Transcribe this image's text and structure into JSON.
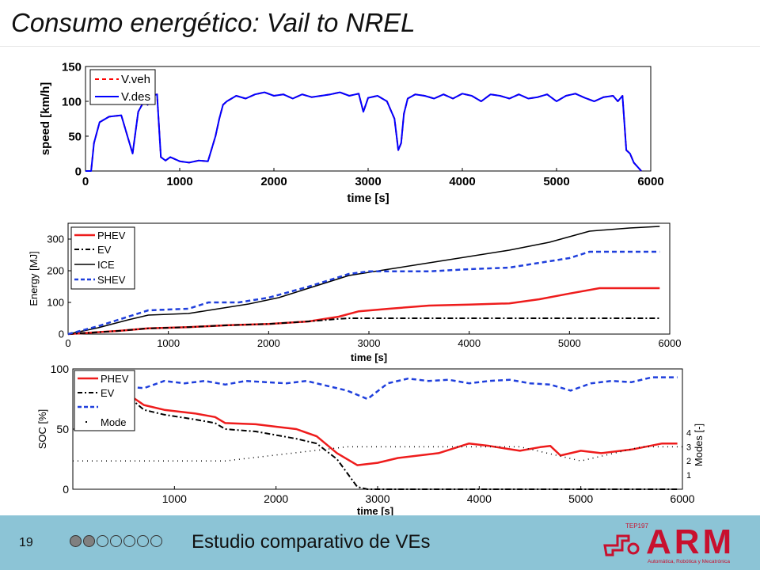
{
  "slide": {
    "title": "Consumo energético: Vail to NREL",
    "page_number": "19",
    "footer_text": "Estudio comparativo de VEs",
    "progress": {
      "total": 7,
      "filled": 2
    },
    "logo": {
      "main": "ARM",
      "small": "TEP197",
      "sub": "Automática, Robótica y Mecatrónica"
    },
    "colors": {
      "footer_bg": "#8cc4d6",
      "dot_fill": "#808080",
      "logo": "#c8102e"
    }
  },
  "chart_data": [
    {
      "type": "line",
      "xlabel": "time [s]",
      "ylabel": "speed [km/h]",
      "xlim": [
        0,
        6000
      ],
      "ylim": [
        0,
        150
      ],
      "xticks": [
        0,
        1000,
        2000,
        3000,
        4000,
        5000,
        6000
      ],
      "yticks": [
        0,
        50,
        100,
        150
      ],
      "legend": "top-left",
      "series": [
        {
          "name": "V.veh",
          "color": "#ff0000",
          "dash": "dashed",
          "x": [
            0,
            60,
            90,
            150,
            250,
            380,
            500,
            560,
            620,
            660,
            700,
            760,
            800,
            850,
            900,
            1000,
            1100,
            1200,
            1300,
            1380,
            1420,
            1460,
            1500,
            1600,
            1700,
            1800,
            1900,
            2000,
            2100,
            2200,
            2300,
            2400,
            2500,
            2600,
            2700,
            2800,
            2900,
            2950,
            3000,
            3100,
            3200,
            3280,
            3320,
            3350,
            3380,
            3420,
            3500,
            3600,
            3700,
            3800,
            3900,
            4000,
            4100,
            4200,
            4300,
            4400,
            4500,
            4600,
            4700,
            4800,
            4900,
            5000,
            5100,
            5200,
            5300,
            5400,
            5500,
            5600,
            5650,
            5700,
            5740,
            5780,
            5820,
            5860,
            5900
          ],
          "y": [
            0,
            0,
            40,
            70,
            78,
            80,
            25,
            85,
            100,
            95,
            108,
            110,
            20,
            15,
            20,
            14,
            12,
            15,
            14,
            50,
            75,
            95,
            100,
            108,
            104,
            110,
            113,
            108,
            110,
            104,
            110,
            106,
            108,
            110,
            113,
            108,
            111,
            85,
            105,
            108,
            100,
            75,
            30,
            40,
            82,
            104,
            110,
            108,
            104,
            110,
            104,
            111,
            108,
            100,
            110,
            108,
            104,
            110,
            104,
            106,
            110,
            100,
            108,
            111,
            105,
            100,
            106,
            108,
            100,
            108,
            30,
            25,
            12,
            6,
            0
          ]
        },
        {
          "name": "V.des",
          "color": "#0000ff",
          "dash": "solid",
          "x": [
            0,
            60,
            90,
            150,
            250,
            380,
            500,
            560,
            620,
            660,
            700,
            760,
            800,
            850,
            900,
            1000,
            1100,
            1200,
            1300,
            1380,
            1420,
            1460,
            1500,
            1600,
            1700,
            1800,
            1900,
            2000,
            2100,
            2200,
            2300,
            2400,
            2500,
            2600,
            2700,
            2800,
            2900,
            2950,
            3000,
            3100,
            3200,
            3280,
            3320,
            3350,
            3380,
            3420,
            3500,
            3600,
            3700,
            3800,
            3900,
            4000,
            4100,
            4200,
            4300,
            4400,
            4500,
            4600,
            4700,
            4800,
            4900,
            5000,
            5100,
            5200,
            5300,
            5400,
            5500,
            5600,
            5650,
            5700,
            5740,
            5780,
            5820,
            5860,
            5900
          ],
          "y": [
            0,
            0,
            40,
            70,
            78,
            80,
            25,
            85,
            100,
            95,
            108,
            110,
            20,
            15,
            20,
            14,
            12,
            15,
            14,
            50,
            75,
            95,
            100,
            108,
            104,
            110,
            113,
            108,
            110,
            104,
            110,
            106,
            108,
            110,
            113,
            108,
            111,
            85,
            105,
            108,
            100,
            75,
            30,
            40,
            82,
            104,
            110,
            108,
            104,
            110,
            104,
            111,
            108,
            100,
            110,
            108,
            104,
            110,
            104,
            106,
            110,
            100,
            108,
            111,
            105,
            100,
            106,
            108,
            100,
            108,
            30,
            25,
            12,
            6,
            0
          ]
        }
      ]
    },
    {
      "type": "line",
      "xlabel": "time [s]",
      "ylabel": "Energy [MJ]",
      "xlim": [
        0,
        6000
      ],
      "ylim": [
        0,
        350
      ],
      "xticks": [
        0,
        1000,
        2000,
        3000,
        4000,
        5000,
        6000
      ],
      "yticks": [
        0,
        100,
        200,
        300
      ],
      "legend": "top-left",
      "series": [
        {
          "name": "PHEV",
          "color": "#ee1c1c",
          "dash": "solid",
          "x": [
            0,
            500,
            800,
            1200,
            1600,
            2000,
            2400,
            2700,
            2900,
            3200,
            3600,
            4000,
            4400,
            4700,
            5000,
            5300,
            5900
          ],
          "y": [
            0,
            10,
            18,
            22,
            28,
            32,
            40,
            55,
            72,
            80,
            90,
            93,
            97,
            110,
            128,
            145,
            145
          ]
        },
        {
          "name": "EV",
          "color": "#000000",
          "dash": "dashdot",
          "x": [
            0,
            500,
            800,
            1200,
            1600,
            2000,
            2400,
            2700,
            2800,
            5900
          ],
          "y": [
            0,
            10,
            18,
            22,
            28,
            32,
            40,
            48,
            50,
            50
          ]
        },
        {
          "name": "ICE",
          "color": "#000000",
          "dash": "solid",
          "x": [
            0,
            300,
            600,
            800,
            1200,
            1500,
            1800,
            2100,
            2400,
            2800,
            3200,
            3600,
            4000,
            4400,
            4800,
            5200,
            5600,
            5900
          ],
          "y": [
            0,
            20,
            45,
            60,
            65,
            80,
            95,
            115,
            145,
            185,
            205,
            225,
            245,
            265,
            290,
            325,
            335,
            340
          ]
        },
        {
          "name": "SHEV",
          "color": "#1f3fdc",
          "dash": "dashed",
          "x": [
            0,
            300,
            600,
            800,
            1200,
            1400,
            1700,
            2000,
            2400,
            2800,
            3000,
            3600,
            4000,
            4400,
            4800,
            5000,
            5200,
            5900
          ],
          "y": [
            0,
            25,
            55,
            75,
            80,
            100,
            100,
            115,
            150,
            190,
            198,
            198,
            205,
            210,
            230,
            240,
            260,
            260
          ]
        }
      ]
    },
    {
      "type": "line",
      "xlabel": "time [s]",
      "ylabel": "SOC [%]",
      "y2label": "Modes [-]",
      "xlim": [
        0,
        6000
      ],
      "ylim": [
        0,
        100
      ],
      "xticks": [
        1000,
        2000,
        3000,
        4000,
        5000,
        6000
      ],
      "yticks": [
        0,
        50,
        100
      ],
      "y2ticks": [
        1,
        2,
        3,
        4
      ],
      "legend": "top-left",
      "series": [
        {
          "name": "PHEV",
          "color": "#ee1c1c",
          "dash": "solid",
          "x": [
            560,
            700,
            900,
            1200,
            1400,
            1500,
            1800,
            2000,
            2200,
            2400,
            2600,
            2800,
            3000,
            3200,
            3600,
            3900,
            4100,
            4400,
            4600,
            4700,
            4800,
            5000,
            5200,
            5500,
            5800,
            5950
          ],
          "y": [
            78,
            70,
            66,
            63,
            60,
            55,
            54,
            52,
            50,
            44,
            30,
            20,
            22,
            26,
            30,
            38,
            36,
            32,
            35,
            36,
            28,
            32,
            30,
            33,
            38,
            38
          ]
        },
        {
          "name": "EV",
          "color": "#000000",
          "dash": "dashdot",
          "x": [
            560,
            700,
            900,
            1200,
            1400,
            1500,
            1800,
            2000,
            2200,
            2400,
            2600,
            2800,
            2900,
            5950
          ],
          "y": [
            76,
            66,
            62,
            58,
            55,
            50,
            48,
            45,
            42,
            38,
            25,
            2,
            0,
            0
          ]
        },
        {
          "name": "",
          "color": "#1f3fdc",
          "dash": "dashed",
          "x": [
            560,
            700,
            900,
            1100,
            1300,
            1500,
            1700,
            1900,
            2100,
            2300,
            2500,
            2700,
            2900,
            3100,
            3300,
            3500,
            3700,
            3900,
            4100,
            4300,
            4500,
            4700,
            4900,
            5100,
            5300,
            5500,
            5700,
            5950
          ],
          "y": [
            85,
            84,
            90,
            88,
            90,
            87,
            90,
            89,
            88,
            90,
            86,
            82,
            75,
            88,
            92,
            90,
            91,
            88,
            90,
            91,
            88,
            87,
            82,
            88,
            90,
            89,
            93,
            93
          ]
        },
        {
          "name": "Mode",
          "color": "#000000",
          "dash": "dotted",
          "x": [
            0,
            1500,
            2700,
            3750,
            4400,
            5000,
            5600,
            6000
          ],
          "y": [
            2,
            2,
            3,
            3,
            3,
            2,
            3,
            3
          ]
        }
      ]
    }
  ]
}
